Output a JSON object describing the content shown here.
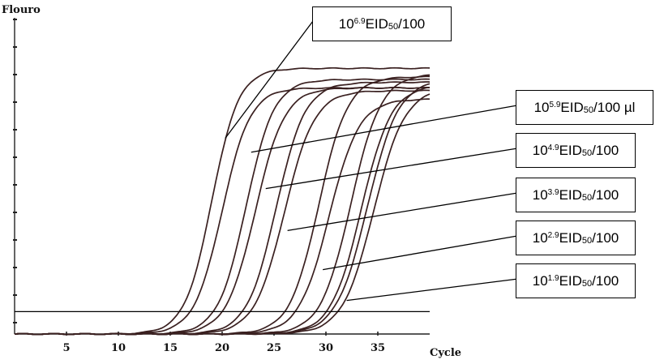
{
  "chart_data": {
    "type": "line",
    "ylabel": "Flouro",
    "xlabel": "Cycle",
    "xlim": [
      0,
      40
    ],
    "x_ticks": [
      5,
      10,
      15,
      20,
      25,
      30,
      35
    ],
    "threshold": 0.08,
    "grid": false,
    "series": [
      {
        "dilution": "6.9",
        "midpoint": 19.0,
        "slope": 1.3,
        "plateau": 0.95
      },
      {
        "dilution": "6.9",
        "midpoint": 20.0,
        "slope": 1.35,
        "plateau": 0.88
      },
      {
        "dilution": "5.9",
        "midpoint": 22.3,
        "slope": 1.35,
        "plateau": 0.91
      },
      {
        "dilution": "5.9",
        "midpoint": 23.2,
        "slope": 1.4,
        "plateau": 0.88
      },
      {
        "dilution": "4.9",
        "midpoint": 25.2,
        "slope": 1.4,
        "plateau": 0.9
      },
      {
        "dilution": "4.9",
        "midpoint": 26.0,
        "slope": 1.45,
        "plateau": 0.87
      },
      {
        "dilution": "3.9",
        "midpoint": 29.3,
        "slope": 1.4,
        "plateau": 0.92
      },
      {
        "dilution": "3.9",
        "midpoint": 30.3,
        "slope": 1.45,
        "plateau": 0.84
      },
      {
        "dilution": "2.9",
        "midpoint": 32.4,
        "slope": 1.45,
        "plateau": 0.93
      },
      {
        "dilution": "2.9",
        "midpoint": 33.4,
        "slope": 1.45,
        "plateau": 0.89
      },
      {
        "dilution": "1.9",
        "midpoint": 34.0,
        "slope": 1.5,
        "plateau": 0.91
      },
      {
        "dilution": "1.9",
        "midpoint": 34.6,
        "slope": 1.5,
        "plateau": 0.88
      }
    ],
    "annotations": [
      {
        "base": "10",
        "exp": "6.9",
        "pre": "EID",
        "sub": "50",
        "post": "/100",
        "target": [
          20.3,
          0.7
        ]
      },
      {
        "base": "10",
        "exp": "5.9",
        "pre": "EID",
        "sub": "50",
        "post": "/100 µl",
        "target": [
          22.8,
          0.65
        ]
      },
      {
        "base": "10",
        "exp": "4.9",
        "pre": "EID",
        "sub": "50",
        "post": "/100",
        "target": [
          24.2,
          0.52
        ]
      },
      {
        "base": "10",
        "exp": "3.9",
        "pre": "EID",
        "sub": "50",
        "post": "/100",
        "target": [
          26.3,
          0.37
        ]
      },
      {
        "base": "10",
        "exp": "2.9",
        "pre": "EID",
        "sub": "50",
        "post": "/100",
        "target": [
          29.7,
          0.23
        ]
      },
      {
        "base": "10",
        "exp": "1.9",
        "pre": "EID",
        "sub": "50",
        "post": "/100",
        "target": [
          32.0,
          0.12
        ]
      }
    ],
    "colors": {
      "curve": "#3a2020",
      "axis": "#222222",
      "callout_border": "#000000"
    }
  }
}
